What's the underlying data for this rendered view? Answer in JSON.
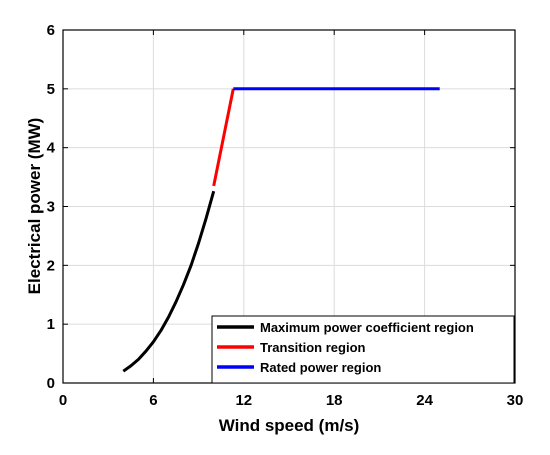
{
  "chart_data": {
    "type": "line",
    "title": "",
    "xlabel": "Wind speed (m/s)",
    "ylabel": "Electrical power (MW)",
    "xlim": [
      0,
      30
    ],
    "ylim": [
      0,
      6
    ],
    "xticks": [
      0,
      6,
      12,
      18,
      24,
      30
    ],
    "yticks": [
      0,
      1,
      2,
      3,
      4,
      5,
      6
    ],
    "grid": true,
    "legend_position": "bottom-right",
    "series": [
      {
        "name": "Maximum power coefficient region",
        "color": "#000000",
        "x": [
          4.0,
          4.5,
          5.0,
          5.5,
          6.0,
          6.5,
          7.0,
          7.5,
          8.0,
          8.5,
          9.0,
          9.5,
          10.0
        ],
        "y": [
          0.2,
          0.29,
          0.4,
          0.54,
          0.7,
          0.89,
          1.12,
          1.38,
          1.67,
          2.0,
          2.38,
          2.8,
          3.26
        ]
      },
      {
        "name": "Transition region",
        "color": "#ff0000",
        "x": [
          10.0,
          11.3
        ],
        "y": [
          3.35,
          5.0
        ]
      },
      {
        "name": "Rated power region",
        "color": "#0000ff",
        "x": [
          11.3,
          25.0
        ],
        "y": [
          5.0,
          5.0
        ]
      }
    ]
  }
}
